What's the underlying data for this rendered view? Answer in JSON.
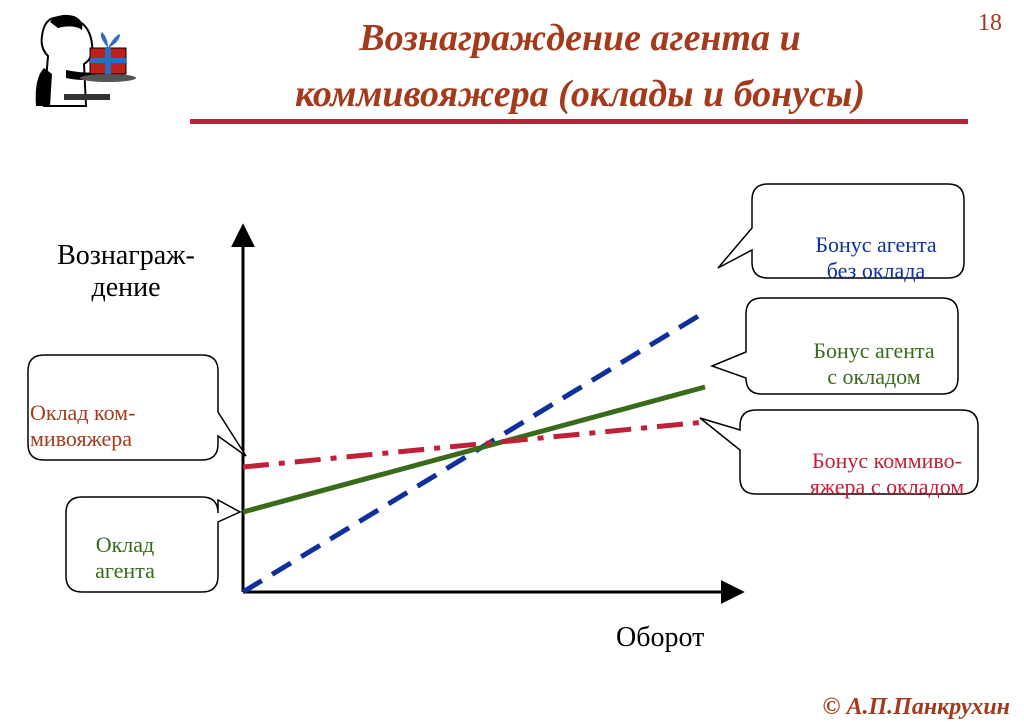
{
  "slide": {
    "title_line1": "Вознаграждение агента и",
    "title_line2": "коммивояжера (оклады и бонусы)",
    "page_number": "18",
    "copyright": "© А.П.Панкрухин"
  },
  "logo": {
    "icon": "waiter-with-gift-icon"
  },
  "colors": {
    "title": "#a33a1c",
    "rule": "#c0203a",
    "agent_no_salary": "#0f2f9a",
    "agent_with_salary": "#3a6b1a",
    "salesman": "#c0203a"
  },
  "chart_data": {
    "type": "line",
    "xlabel": "Оборот",
    "ylabel_line1": "Вознаграж-",
    "ylabel_line2": "дение",
    "series": [
      {
        "name_line1": "Бонус агента",
        "name_line2": "без оклада",
        "style": "dashed",
        "color": "#0f2f9a",
        "start": 0,
        "end": 28
      },
      {
        "name_line1": "Бонус агента",
        "name_line2": "с окладом",
        "style": "solid",
        "color": "#3a6b1a",
        "start": 8,
        "end": 20.5
      },
      {
        "name_line1": "Бонус коммиво-",
        "name_line2": "яжера с окладом",
        "style": "dash-dot",
        "color": "#c0203a",
        "start": 12.5,
        "end": 17
      }
    ],
    "annotations": [
      {
        "line1": "Оклад ком-",
        "line2": "мивояжера",
        "color": "#a33a1c"
      },
      {
        "line1": "Оклад",
        "line2": "агента",
        "color": "#3a6b1a"
      }
    ]
  }
}
